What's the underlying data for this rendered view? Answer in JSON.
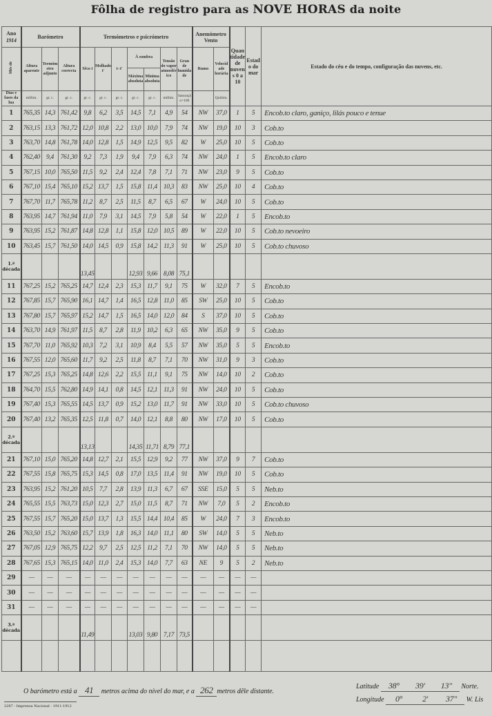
{
  "title": {
    "prefix": "Fôlha de registro para as",
    "bold": "NOVE HORAS",
    "suffix": "da noite"
  },
  "header": {
    "ano_label": "Ano",
    "ano_value": "1914",
    "mes_label": "Mês de",
    "dias_label": "Dias e fases da lua",
    "barometro": "Barómetro",
    "termometros": "Termómetros e psicrómetro",
    "anemometro": "Anemómetro",
    "vento": "Vento",
    "quantidade": "Quantidade de nuvens 0 a 10",
    "estado_mar": "Estado do mar",
    "estado_ceu": "Estado do céu e do tempo, configuração das nuvens, etc.",
    "a_sombra": "À sombra",
    "cols": [
      "Altura aparente",
      "Termómetro adjunto",
      "Altura correcta",
      "Sêco t",
      "Molhado t'",
      "t−t'",
      "Máxima absoluta",
      "Mínima absoluta",
      "Tensão do vapor atmosférico",
      "Grau de humidade",
      "Rumo",
      "Velocidade horária"
    ],
    "units": [
      "millim.",
      "gr. c.",
      "gr. c.",
      "gr. c.",
      "gr. c.",
      "gr. c.",
      "gr. c.",
      "gr. c.",
      "millim.",
      "Saturação=100",
      "",
      "Quilóm."
    ]
  },
  "rows": [
    {
      "day": "1",
      "v": [
        "765,35",
        "14,3",
        "761,42",
        "9,8",
        "6,2",
        "3,5",
        "14,5",
        "7,1",
        "4,9",
        "54",
        "NW",
        "37,0",
        "1",
        "5"
      ],
      "sky": "Encob.to claro, ganiço, lilás pouco e tenue"
    },
    {
      "day": "2",
      "v": [
        "763,15",
        "13,3",
        "761,72",
        "12,0",
        "10,8",
        "2,2",
        "13,0",
        "10,0",
        "7,9",
        "74",
        "NW",
        "19,0",
        "10",
        "3"
      ],
      "sky": "Cob.to"
    },
    {
      "day": "3",
      "v": [
        "763,70",
        "14,8",
        "761,78",
        "14,0",
        "12,8",
        "1,5",
        "14,9",
        "12,5",
        "9,5",
        "82",
        "W",
        "25,0",
        "10",
        "5"
      ],
      "sky": "Cob.to"
    },
    {
      "day": "4",
      "v": [
        "762,40",
        "9,4",
        "761,30",
        "9,2",
        "7,3",
        "1,9",
        "9,4",
        "7,9",
        "6,3",
        "74",
        "NW",
        "24,0",
        "1",
        "5"
      ],
      "sky": "Encob.to claro"
    },
    {
      "day": "5",
      "v": [
        "767,15",
        "10,0",
        "765,50",
        "11,5",
        "9,2",
        "2,4",
        "12,4",
        "7,8",
        "7,1",
        "71",
        "NW",
        "23,0",
        "9",
        "5"
      ],
      "sky": "Cob.to"
    },
    {
      "day": "6",
      "v": [
        "767,10",
        "15,4",
        "765,10",
        "15,2",
        "13,7",
        "1,5",
        "15,8",
        "11,4",
        "10,3",
        "83",
        "NW",
        "25,0",
        "10",
        "4"
      ],
      "sky": "Cob.to"
    },
    {
      "day": "7",
      "v": [
        "767,70",
        "11,7",
        "765,78",
        "11,2",
        "8,7",
        "2,5",
        "11,5",
        "8,7",
        "6,5",
        "67",
        "W",
        "24,0",
        "10",
        "5"
      ],
      "sky": "Cob.to"
    },
    {
      "day": "8",
      "v": [
        "763,95",
        "14,7",
        "761,94",
        "11,0",
        "7,9",
        "3,1",
        "14,5",
        "7,9",
        "5,8",
        "54",
        "W",
        "22,0",
        "1",
        "5"
      ],
      "sky": "Encob.to"
    },
    {
      "day": "9",
      "v": [
        "763,95",
        "15,2",
        "761,87",
        "14,8",
        "12,8",
        "1,1",
        "15,8",
        "12,0",
        "10,5",
        "89",
        "W",
        "22,0",
        "10",
        "5"
      ],
      "sky": "Cob.to nevoeiro"
    },
    {
      "day": "10",
      "v": [
        "763,45",
        "15,7",
        "761,50",
        "14,0",
        "14,5",
        "0,9",
        "15,8",
        "14,2",
        "11,3",
        "91",
        "W",
        "25,0",
        "10",
        "5"
      ],
      "sky": "Cob.to chuvoso"
    },
    {
      "decada": "1.ª década",
      "v": [
        "",
        "",
        "",
        "13,45",
        "",
        "",
        "12,93",
        "9,66",
        "8,08",
        "75,1",
        "",
        "",
        "",
        ""
      ]
    },
    {
      "day": "11",
      "v": [
        "767,25",
        "15,2",
        "765,25",
        "14,7",
        "12,4",
        "2,3",
        "15,3",
        "11,7",
        "9,1",
        "75",
        "W",
        "32,0",
        "7",
        "5"
      ],
      "sky": "Encob.to"
    },
    {
      "day": "12",
      "v": [
        "767,85",
        "15,7",
        "765,90",
        "16,1",
        "14,7",
        "1,4",
        "16,5",
        "12,8",
        "11,0",
        "85",
        "SW",
        "25,0",
        "10",
        "5"
      ],
      "sky": "Cob.to"
    },
    {
      "day": "13",
      "v": [
        "767,80",
        "15,7",
        "765,97",
        "15,2",
        "14,7",
        "1,5",
        "16,5",
        "14,0",
        "12,0",
        "84",
        "S",
        "37,0",
        "10",
        "5"
      ],
      "sky": "Cob.to"
    },
    {
      "day": "14",
      "v": [
        "763,70",
        "14,9",
        "761,97",
        "11,5",
        "8,7",
        "2,8",
        "11,9",
        "10,2",
        "6,3",
        "65",
        "NW",
        "35,0",
        "9",
        "5"
      ],
      "sky": "Cob.to"
    },
    {
      "day": "15",
      "v": [
        "767,70",
        "11,0",
        "765,92",
        "10,3",
        "7,2",
        "3,1",
        "10,9",
        "8,4",
        "5,5",
        "57",
        "NW",
        "35,0",
        "5",
        "5"
      ],
      "sky": "Encob.to"
    },
    {
      "day": "16",
      "v": [
        "767,55",
        "12,0",
        "765,60",
        "11,7",
        "9,2",
        "2,5",
        "11,8",
        "8,7",
        "7,1",
        "70",
        "NW",
        "31,0",
        "9",
        "3"
      ],
      "sky": "Cob.to"
    },
    {
      "day": "17",
      "v": [
        "767,25",
        "15,3",
        "765,25",
        "14,8",
        "12,6",
        "2,2",
        "15,5",
        "11,1",
        "9,1",
        "75",
        "NW",
        "14,0",
        "10",
        "2"
      ],
      "sky": "Cob.to"
    },
    {
      "day": "18",
      "v": [
        "764,70",
        "15,5",
        "762,80",
        "14,9",
        "14,1",
        "0,8",
        "14,5",
        "12,1",
        "11,3",
        "91",
        "NW",
        "24,0",
        "10",
        "5"
      ],
      "sky": "Cob.to"
    },
    {
      "day": "19",
      "v": [
        "767,40",
        "15,3",
        "765,55",
        "14,5",
        "13,7",
        "0,9",
        "15,2",
        "13,0",
        "11,7",
        "91",
        "NW",
        "33,0",
        "10",
        "5"
      ],
      "sky": "Cob.to chuvoso"
    },
    {
      "day": "20",
      "v": [
        "767,40",
        "13,2",
        "765,35",
        "12,5",
        "11,8",
        "0,7",
        "14,0",
        "12,1",
        "8,8",
        "80",
        "NW",
        "17,0",
        "10",
        "5"
      ],
      "sky": "Cob.to"
    },
    {
      "decada": "2.ª década",
      "v": [
        "",
        "",
        "",
        "13,13",
        "",
        "",
        "14,35",
        "11,71",
        "8,79",
        "77,1",
        "",
        "",
        "",
        ""
      ]
    },
    {
      "day": "21",
      "v": [
        "767,10",
        "15,0",
        "765,20",
        "14,8",
        "12,7",
        "2,1",
        "15,5",
        "12,9",
        "9,2",
        "77",
        "NW",
        "37,0",
        "9",
        "7"
      ],
      "sky": "Cob.to"
    },
    {
      "day": "22",
      "v": [
        "767,55",
        "15,8",
        "765,75",
        "15,3",
        "14,5",
        "0,8",
        "17,0",
        "13,5",
        "11,4",
        "91",
        "NW",
        "19,0",
        "10",
        "5"
      ],
      "sky": "Cob.to"
    },
    {
      "day": "23",
      "v": [
        "763,95",
        "15,2",
        "761,20",
        "10,5",
        "7,7",
        "2,8",
        "13,9",
        "11,3",
        "6,7",
        "67",
        "SSE",
        "15,0",
        "5",
        "5"
      ],
      "sky": "Neb.to"
    },
    {
      "day": "24",
      "v": [
        "765,55",
        "15,5",
        "763,73",
        "15,0",
        "12,3",
        "2,7",
        "15,0",
        "11,5",
        "8,7",
        "71",
        "NW",
        "7,0",
        "5",
        "2"
      ],
      "sky": "Encob.to"
    },
    {
      "day": "25",
      "v": [
        "767,55",
        "15,7",
        "765,20",
        "15,0",
        "13,7",
        "1,3",
        "15,5",
        "14,4",
        "10,4",
        "85",
        "W",
        "24,0",
        "7",
        "3"
      ],
      "sky": "Encob.to"
    },
    {
      "day": "26",
      "v": [
        "763,50",
        "15,2",
        "763,60",
        "15,7",
        "13,9",
        "1,8",
        "16,3",
        "14,0",
        "11,1",
        "80",
        "SW",
        "14,0",
        "5",
        "5"
      ],
      "sky": "Neb.to"
    },
    {
      "day": "27",
      "v": [
        "767,05",
        "12,9",
        "765,75",
        "12,2",
        "9,7",
        "2,5",
        "12,5",
        "11,2",
        "7,1",
        "70",
        "NW",
        "14,0",
        "5",
        "5"
      ],
      "sky": "Neb.to"
    },
    {
      "day": "28",
      "v": [
        "767,65",
        "15,3",
        "765,15",
        "14,0",
        "11,0",
        "2,4",
        "15,3",
        "14,0",
        "7,7",
        "63",
        "NE",
        "9",
        "5",
        "2"
      ],
      "sky": "Neb.to"
    },
    {
      "day": "29",
      "v": [
        "—",
        "—",
        "—",
        "—",
        "—",
        "—",
        "—",
        "—",
        "—",
        "—",
        "—",
        "—",
        "—",
        "—"
      ],
      "sky": ""
    },
    {
      "day": "30",
      "v": [
        "—",
        "—",
        "—",
        "—",
        "—",
        "—",
        "—",
        "—",
        "—",
        "—",
        "—",
        "—",
        "—",
        "—"
      ],
      "sky": ""
    },
    {
      "day": "31",
      "v": [
        "—",
        "—",
        "—",
        "—",
        "—",
        "—",
        "—",
        "—",
        "—",
        "—",
        "—",
        "—",
        "—",
        "—"
      ],
      "sky": ""
    },
    {
      "decada": "3.ª década",
      "v": [
        "",
        "",
        "",
        "11,49",
        "",
        "",
        "13,03",
        "9,80",
        "7,17",
        "73,5",
        "",
        "",
        "",
        ""
      ]
    }
  ],
  "footer": {
    "baro_prefix": "O barómetro está a",
    "baro_height": "41",
    "baro_mid": "metros acima do nível do mar, e a",
    "baro_distance": "262",
    "baro_suffix": "metros dêle distante.",
    "latitude_label": "Latitude",
    "lat_deg": "38°",
    "lat_min": "39'",
    "lat_sec": "13\"",
    "lat_dir": "Norte.",
    "longitude_label": "Longitude",
    "lon_deg": "0°",
    "lon_min": "2'",
    "lon_sec": "37\"",
    "lon_dir": "W. Lis",
    "imprint": "2287 - Imprensa Nacional - 1911-1912"
  }
}
